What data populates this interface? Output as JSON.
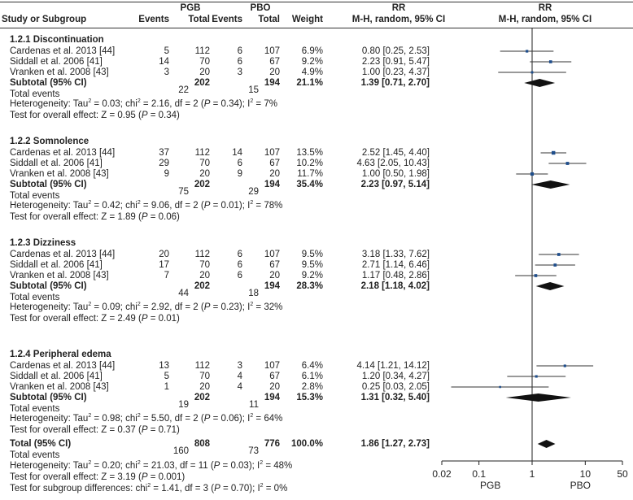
{
  "header": {
    "col_study": "Study or Subgroup",
    "pgb_group": "PGB",
    "pbo_group": "PBO",
    "events": "Events",
    "total": "Total",
    "weight": "Weight",
    "rr_title": "RR",
    "rr_method": "M-H, random, 95% CI"
  },
  "subgroups": [
    {
      "title": "1.2.1 Discontinuation",
      "studies": [
        {
          "name": "Cardenas et al. 2013 [44]",
          "pgb_events": "5",
          "pgb_total": "112",
          "pbo_events": "6",
          "pbo_total": "107",
          "weight": "6.9%",
          "ci": "0.80 [0.25, 2.53]"
        },
        {
          "name": "Siddall et al. 2006 [41]",
          "pgb_events": "14",
          "pgb_total": "70",
          "pbo_events": "6",
          "pbo_total": "67",
          "weight": "9.2%",
          "ci": "2.23 [0.91, 5.47]"
        },
        {
          "name": "Vranken et al. 2008 [43]",
          "pgb_events": "3",
          "pgb_total": "20",
          "pbo_events": "3",
          "pbo_total": "20",
          "weight": "4.9%",
          "ci": "1.00 [0.23, 4.37]"
        }
      ],
      "subtotal": {
        "label": "Subtotal (95% CI)",
        "pgb_total": "202",
        "pbo_total": "194",
        "weight": "21.1%",
        "ci": "1.39 [0.71, 2.70]"
      },
      "total_events": {
        "label": "Total events",
        "pgb": "22",
        "pbo": "15"
      },
      "het": {
        "prefix": "Heterogeneity: Tau",
        "sup1": "2",
        "a": " = 0.03; chi",
        "sup2": "2",
        "b": " = 2.16, df = 2 (",
        "p": "P",
        "c": " = 0.34); I",
        "sup3": "2",
        "d": " = 7%"
      },
      "overall": {
        "a": "Test for overall effect: Z = 0.95 (",
        "p": "P",
        "b": " = 0.34)"
      }
    },
    {
      "title": "1.2.2 Somnolence",
      "studies": [
        {
          "name": "Cardenas et al. 2013 [44]",
          "pgb_events": "37",
          "pgb_total": "112",
          "pbo_events": "14",
          "pbo_total": "107",
          "weight": "13.5%",
          "ci": "2.52 [1.45, 4.40]"
        },
        {
          "name": "Siddall et al. 2006 [41]",
          "pgb_events": "29",
          "pgb_total": "70",
          "pbo_events": "6",
          "pbo_total": "67",
          "weight": "10.2%",
          "ci": "4.63 [2.05, 10.43]"
        },
        {
          "name": "Vranken et al. 2008 [43]",
          "pgb_events": "9",
          "pgb_total": "20",
          "pbo_events": "9",
          "pbo_total": "20",
          "weight": "11.7%",
          "ci": "1.00 [0.50, 1.98]"
        }
      ],
      "subtotal": {
        "label": "Subtotal (95% CI)",
        "pgb_total": "202",
        "pbo_total": "194",
        "weight": "35.4%",
        "ci": "2.23 [0.97, 5.14]"
      },
      "total_events": {
        "label": "Total events",
        "pgb": "75",
        "pbo": "29"
      },
      "het": {
        "prefix": "Heterogeneity: Tau",
        "sup1": "2",
        "a": " = 0.42; chi",
        "sup2": "2",
        "b": " = 9.06, df = 2 (",
        "p": "P",
        "c": " = 0.01); I",
        "sup3": "2",
        "d": " = 78%"
      },
      "overall": {
        "a": "Test for overall effect: Z = 1.89 (",
        "p": "P",
        "b": " = 0.06)"
      }
    },
    {
      "title": "1.2.3 Dizziness",
      "studies": [
        {
          "name": "Cardenas et al. 2013 [44]",
          "pgb_events": "20",
          "pgb_total": "112",
          "pbo_events": "6",
          "pbo_total": "107",
          "weight": "9.5%",
          "ci": "3.18 [1.33, 7.62]"
        },
        {
          "name": "Siddall et al. 2006 [41]",
          "pgb_events": "17",
          "pgb_total": "70",
          "pbo_events": "6",
          "pbo_total": "67",
          "weight": "9.5%",
          "ci": "2.71 [1.14, 6.46]"
        },
        {
          "name": "Vranken et al. 2008 [43]",
          "pgb_events": "7",
          "pgb_total": "20",
          "pbo_events": "6",
          "pbo_total": "20",
          "weight": "9.2%",
          "ci": "1.17 [0.48, 2.86]"
        }
      ],
      "subtotal": {
        "label": "Subtotal (95% CI)",
        "pgb_total": "202",
        "pbo_total": "194",
        "weight": "28.3%",
        "ci": "2.18 [1.18, 4.02]"
      },
      "total_events": {
        "label": "Total events",
        "pgb": "44",
        "pbo": "18"
      },
      "het": {
        "prefix": "Heterogeneity: Tau",
        "sup1": "2",
        "a": " = 0.09; chi",
        "sup2": "2",
        "b": " = 2.92, df = 2 (",
        "p": "P",
        "c": " = 0.23); I",
        "sup3": "2",
        "d": " = 32%"
      },
      "overall": {
        "a": "Test for overall effect: Z = 2.49 (",
        "p": "P",
        "b": " = 0.01)"
      }
    },
    {
      "title": "1.2.4 Peripheral edema",
      "studies": [
        {
          "name": "Cardenas et al. 2013 [44]",
          "pgb_events": "13",
          "pgb_total": "112",
          "pbo_events": "3",
          "pbo_total": "107",
          "weight": "6.4%",
          "ci": "4.14 [1.21, 14.12]"
        },
        {
          "name": "Siddall et al. 2006 [41]",
          "pgb_events": "5",
          "pgb_total": "70",
          "pbo_events": "4",
          "pbo_total": "67",
          "weight": "6.1%",
          "ci": "1.20 [0.34, 4.27]"
        },
        {
          "name": "Vranken et al. 2008 [43]",
          "pgb_events": "1",
          "pgb_total": "20",
          "pbo_events": "4",
          "pbo_total": "20",
          "weight": "2.8%",
          "ci": "0.25 [0.03, 2.05]"
        }
      ],
      "subtotal": {
        "label": "Subtotal (95% CI)",
        "pgb_total": "202",
        "pbo_total": "194",
        "weight": "15.3%",
        "ci": "1.31 [0.32, 5.40]"
      },
      "total_events": {
        "label": "Total events",
        "pgb": "19",
        "pbo": "11"
      },
      "het": {
        "prefix": "Heterogeneity: Tau",
        "sup1": "2",
        "a": " = 0.98; chi",
        "sup2": "2",
        "b": " = 5.50, df = 2 (",
        "p": "P",
        "c": " = 0.06); I",
        "sup3": "2",
        "d": " = 64%"
      },
      "overall": {
        "a": "Test for overall effect: Z = 0.37 (",
        "p": "P",
        "b": " = 0.71)"
      }
    }
  ],
  "total": {
    "label": "Total (95% CI)",
    "pgb_total": "808",
    "pbo_total": "776",
    "weight": "100.0%",
    "ci": "1.86 [1.27, 2.73]",
    "total_events": {
      "label": "Total events",
      "pgb": "160",
      "pbo": "73"
    },
    "het": {
      "prefix": "Heterogeneity: Tau",
      "sup1": "2",
      "a": " = 0.20; chi",
      "sup2": "2",
      "b": " = 21.03, df = 11 (",
      "p": "P",
      "c": " = 0.03); I",
      "sup3": "2",
      "d": " = 48%"
    },
    "overall": {
      "a": "Test for overall effect: Z = 3.19 (",
      "p": "P",
      "b": " = 0.001)"
    },
    "subgroup_diff": {
      "a": "Test for subgroup differences: chi",
      "sup": "2",
      "b": " = 1.41, df = 3 (",
      "p": "P",
      "c": " = 0.70); I",
      "sup2": "2",
      "d": " = 0%"
    }
  },
  "chart_data": {
    "type": "forest",
    "scale": "log",
    "xticks": [
      "0.02",
      "0.1",
      "1",
      "10",
      "50"
    ],
    "xlabel_left": "PGB",
    "xlabel_right": "PBO",
    "marker_color": "#1f4e8c",
    "diamond_color": "#111111",
    "studies": [
      {
        "rr": 0.8,
        "lo": 0.25,
        "hi": 2.53,
        "weight": 6.9
      },
      {
        "rr": 2.23,
        "lo": 0.91,
        "hi": 5.47,
        "weight": 9.2
      },
      {
        "rr": 1.0,
        "lo": 0.23,
        "hi": 4.37,
        "weight": 4.9
      },
      {
        "rr": 2.52,
        "lo": 1.45,
        "hi": 4.4,
        "weight": 13.5
      },
      {
        "rr": 4.63,
        "lo": 2.05,
        "hi": 10.43,
        "weight": 10.2
      },
      {
        "rr": 1.0,
        "lo": 0.5,
        "hi": 1.98,
        "weight": 11.7
      },
      {
        "rr": 3.18,
        "lo": 1.33,
        "hi": 7.62,
        "weight": 9.5
      },
      {
        "rr": 2.71,
        "lo": 1.14,
        "hi": 6.46,
        "weight": 9.5
      },
      {
        "rr": 1.17,
        "lo": 0.48,
        "hi": 2.86,
        "weight": 9.2
      },
      {
        "rr": 4.14,
        "lo": 1.21,
        "hi": 14.12,
        "weight": 6.4
      },
      {
        "rr": 1.2,
        "lo": 0.34,
        "hi": 4.27,
        "weight": 6.1
      },
      {
        "rr": 0.25,
        "lo": 0.03,
        "hi": 2.05,
        "weight": 2.8
      }
    ],
    "diamonds": [
      {
        "rr": 1.39,
        "lo": 0.71,
        "hi": 2.7
      },
      {
        "rr": 2.23,
        "lo": 0.97,
        "hi": 5.14
      },
      {
        "rr": 2.18,
        "lo": 1.18,
        "hi": 4.02
      },
      {
        "rr": 1.31,
        "lo": 0.32,
        "hi": 5.4
      },
      {
        "rr": 1.86,
        "lo": 1.27,
        "hi": 2.73
      }
    ]
  }
}
